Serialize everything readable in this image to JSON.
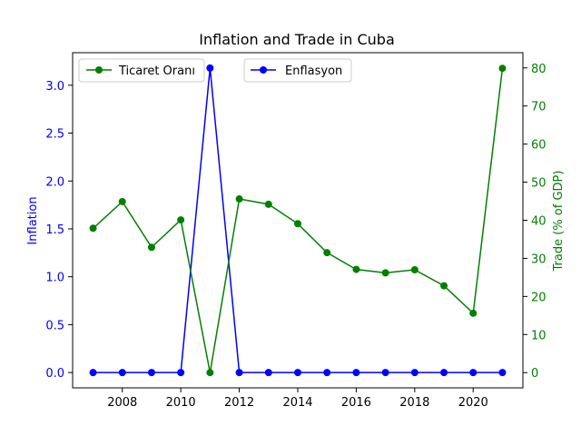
{
  "chart_data": {
    "type": "line",
    "title": "Inflation and Trade in Cuba",
    "x": [
      2007,
      2008,
      2009,
      2010,
      2011,
      2012,
      2013,
      2014,
      2015,
      2016,
      2017,
      2018,
      2019,
      2020,
      2021
    ],
    "xlim": [
      2006.3,
      2021.7
    ],
    "x_ticks": [
      "2008",
      "2010",
      "2012",
      "2014",
      "2016",
      "2018",
      "2020"
    ],
    "left_axis": {
      "label": "Inflation",
      "color": "#0000ff",
      "ylim": [
        -0.16,
        3.34
      ],
      "ticks": [
        "0.0",
        "0.5",
        "1.0",
        "1.5",
        "2.0",
        "2.5",
        "3.0"
      ]
    },
    "right_axis": {
      "label": "Trade (% of GDP)",
      "color": "#008000",
      "ylim": [
        -4,
        84
      ],
      "ticks": [
        "0",
        "10",
        "20",
        "30",
        "40",
        "50",
        "60",
        "70",
        "80"
      ]
    },
    "series": [
      {
        "name": "Enflasyon",
        "axis": "left",
        "color": "#0000ff",
        "values": [
          0,
          0,
          0,
          0,
          3.18,
          0,
          0,
          0,
          0,
          0,
          0,
          0,
          0,
          0,
          0
        ]
      },
      {
        "name": "Ticaret Oranı",
        "axis": "right",
        "color": "#008000",
        "values": [
          37.9,
          44.9,
          32.9,
          40.1,
          0,
          45.6,
          44.2,
          39.1,
          31.5,
          27.1,
          26.2,
          27.0,
          22.8,
          15.6,
          79.9
        ]
      }
    ],
    "legend": [
      {
        "label": "Ticaret Oranı",
        "color": "#008000",
        "placement": "upper-left"
      },
      {
        "label": "Enflasyon",
        "color": "#0000ff",
        "placement": "upper-center"
      }
    ],
    "grid": false
  }
}
